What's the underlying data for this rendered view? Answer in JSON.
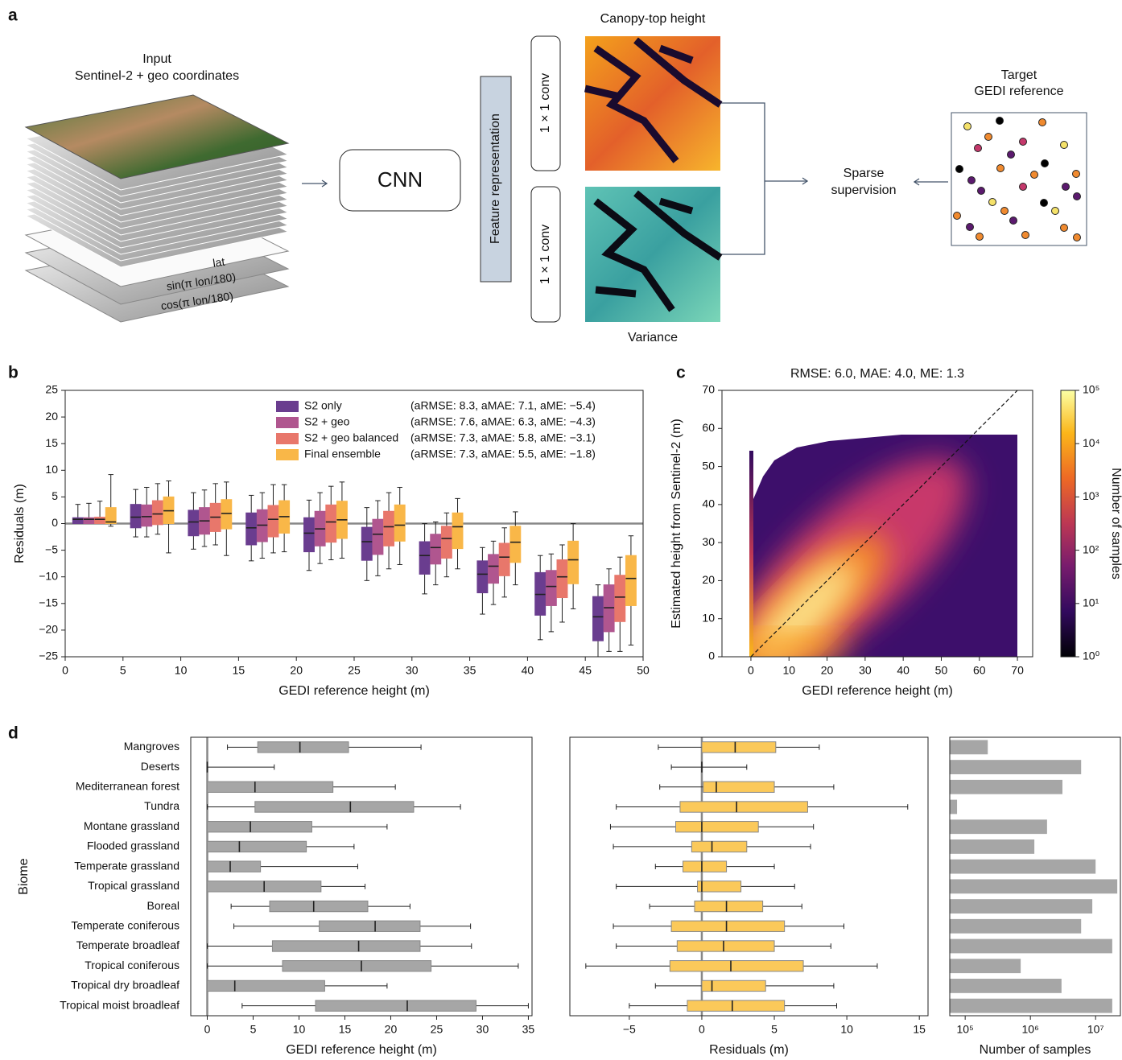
{
  "diagram": {
    "panel_label": "a",
    "input_title": [
      "Input",
      "Sentinel-2 + geo coordinates"
    ],
    "layers": [
      "lat",
      "sin(π lon/180)",
      "cos(π lon/180)"
    ],
    "cnn": "CNN",
    "feature": "Feature representation",
    "conv": [
      "1 × 1 conv",
      "1 × 1 conv"
    ],
    "outputs": [
      "Canopy-top height",
      "Variance"
    ],
    "supervision": [
      "Sparse",
      "supervision"
    ],
    "target": [
      "Target",
      "GEDI reference"
    ]
  },
  "chart_data": [
    {
      "type": "boxplot",
      "orient": "v",
      "panel_label": "b",
      "xlabel": "GEDI reference height (m)",
      "ylabel": "Residuals (m)",
      "xlim": [
        0,
        50
      ],
      "ylim": [
        -25,
        25
      ],
      "xticks": [
        0,
        5,
        10,
        15,
        20,
        25,
        30,
        35,
        40,
        45,
        50
      ],
      "yticks": [
        {
          "value": -25,
          "label": "−25"
        },
        {
          "value": -20,
          "label": "−20"
        },
        {
          "value": -15,
          "label": "−15"
        },
        {
          "value": -10,
          "label": "−10"
        },
        {
          "value": -5,
          "label": "−5"
        },
        0,
        5,
        10,
        15,
        20,
        25
      ],
      "reference_line": 0,
      "series": [
        {
          "name": "S2 only",
          "metrics": "(aRMSE: 8.3, aMAE: 7.1, aME: −5.4)",
          "color": "#6a3d8f",
          "low": [
            0,
            -2.5,
            -4.8,
            -7,
            -8.8,
            -10.7,
            -13.2,
            -17,
            -21.8,
            -25
          ],
          "q1": [
            0,
            -0.8,
            -2.3,
            -4,
            -5.3,
            -6.9,
            -9.5,
            -13,
            -17.2,
            -22
          ],
          "median": [
            0.8,
            1.2,
            0.3,
            -0.8,
            -1.8,
            -3.4,
            -6,
            -9.5,
            -13.3,
            -17.5
          ],
          "q3": [
            1.1,
            3.6,
            2.5,
            2,
            1.1,
            -0.7,
            -3.4,
            -7,
            -9.2,
            -13.7
          ],
          "high": [
            3.6,
            6.4,
            5.8,
            5.3,
            4.4,
            3,
            0,
            -4.5,
            -6,
            -11.5
          ]
        },
        {
          "name": "S2 + geo",
          "metrics": "(aRMSE: 7.6, aMAE: 6.3, aME: −4.3)",
          "color": "#b0568f",
          "low": [
            0,
            -2.5,
            -4.3,
            -6.5,
            -7.5,
            -9.8,
            -11.5,
            -15.2,
            -20.3,
            -24
          ],
          "q1": [
            0,
            -0.5,
            -2,
            -3.4,
            -4.2,
            -5.8,
            -7.6,
            -11.2,
            -15.4,
            -20.3
          ],
          "median": [
            0.8,
            1.3,
            0.5,
            -0.3,
            -1,
            -2,
            -4.5,
            -8,
            -11.8,
            -15.8
          ],
          "q3": [
            1.1,
            3.5,
            3,
            2.6,
            2.3,
            0.8,
            -2,
            -5.8,
            -8.8,
            -11.5
          ],
          "high": [
            3.8,
            6.8,
            6.3,
            5.8,
            5.8,
            4.3,
            0.3,
            -3.3,
            -5.7,
            -8.5
          ]
        },
        {
          "name": "S2 + geo balanced",
          "metrics": "(aRMSE: 7.3, aMAE: 5.8, aME: −3.1)",
          "color": "#e8776b",
          "low": [
            0,
            -2,
            -4,
            -5.5,
            -6.8,
            -8.5,
            -10,
            -13.8,
            -18.5,
            -24
          ],
          "q1": [
            0,
            -0.2,
            -1.5,
            -2.5,
            -3.5,
            -4.2,
            -6.5,
            -9.8,
            -13.9,
            -18.4
          ],
          "median": [
            0.8,
            1.8,
            1.2,
            0.8,
            0.3,
            -0.6,
            -2.8,
            -6.3,
            -10,
            -13.8
          ],
          "q3": [
            1.2,
            4.3,
            3.8,
            3.4,
            3.5,
            2.3,
            -0.5,
            -3.7,
            -6.8,
            -9.7
          ],
          "high": [
            4.2,
            7.5,
            7.5,
            7.3,
            7,
            5.8,
            2,
            -0.8,
            -4,
            -6.3
          ]
        },
        {
          "name": "Final ensemble",
          "metrics": "(aRMSE: 7.3, aMAE: 5.5, aME: −1.8)",
          "color": "#f9b748",
          "low": [
            -0.5,
            -5.5,
            -6,
            -5.3,
            -6.5,
            -7.7,
            -8.5,
            -11.5,
            -16,
            -22.8
          ],
          "q1": [
            0,
            0,
            -1,
            -1.8,
            -2.8,
            -3.3,
            -4.7,
            -7.3,
            -11.3,
            -15.4
          ],
          "median": [
            0.3,
            2.4,
            1.9,
            1.3,
            0.7,
            -0.3,
            -0.6,
            -3.5,
            -6.8,
            -10.3
          ],
          "q3": [
            3,
            5,
            4.5,
            4.3,
            4.2,
            3.5,
            2,
            -0.5,
            -3.3,
            -6
          ],
          "high": [
            9.2,
            8,
            7.8,
            7.3,
            7.8,
            6.8,
            4.7,
            2.2,
            0,
            -2.3
          ]
        }
      ]
    },
    {
      "type": "hist2d",
      "panel_label": "c",
      "title": "RMSE: 6.0, MAE: 4.0, ME: 1.3",
      "xlabel": "GEDI reference height (m)",
      "ylabel": "Estimated height from Sentinel-2 (m)",
      "xlim": [
        -7.6,
        74
      ],
      "ylim": [
        0,
        70
      ],
      "xticks": [
        0,
        10,
        20,
        30,
        40,
        50,
        60,
        70
      ],
      "yticks": [
        0,
        10,
        20,
        30,
        40,
        50,
        60,
        70
      ],
      "identity_line": true,
      "colorbar": {
        "label": "Number of samples",
        "scale": "log",
        "lim": [
          1,
          100000
        ],
        "ticks": [
          {
            "value": 1,
            "label": "10⁰"
          },
          {
            "value": 10,
            "label": "10¹"
          },
          {
            "value": 100,
            "label": "10²"
          },
          {
            "value": 1000,
            "label": "10³"
          },
          {
            "value": 10000,
            "label": "10⁴"
          },
          {
            "value": 100000,
            "label": "10⁵"
          }
        ]
      }
    },
    {
      "type": "boxplot",
      "orient": "h",
      "panel_label": "d",
      "ylabel": "Biome",
      "xlabel": "GEDI reference height (m)",
      "color": "#a6a6a6",
      "categories": [
        "Mangroves",
        "Deserts",
        "Mediterranean forest",
        "Tundra",
        "Montane grassland",
        "Flooded grassland",
        "Temperate grassland",
        "Tropical grassland",
        "Boreal",
        "Temperate coniferous",
        "Temperate broadleaf",
        "Tropical coniferous",
        "Tropical dry broadleaf",
        "Tropical moist broadleaf"
      ],
      "xlim": [
        -1.8,
        35.4
      ],
      "xticks": [
        0,
        5,
        10,
        15,
        20,
        25,
        30,
        35
      ],
      "reference_line": 0,
      "low": [
        2.2,
        0,
        0,
        0,
        0,
        0,
        0,
        0,
        2.6,
        2.9,
        0,
        0,
        0,
        3.8
      ],
      "q1": [
        5.5,
        0,
        0,
        5.2,
        0,
        0,
        0,
        0,
        6.8,
        12.2,
        7.1,
        8.2,
        0,
        11.8
      ],
      "median": [
        10.1,
        0,
        5.2,
        15.6,
        4.7,
        3.5,
        2.5,
        6.2,
        11.6,
        18.3,
        16.5,
        16.8,
        3,
        21.8
      ],
      "q3": [
        15.4,
        0,
        13.7,
        22.5,
        11.4,
        10.8,
        5.8,
        12.4,
        17.5,
        23.2,
        23.2,
        24.4,
        12.8,
        29.3
      ],
      "high": [
        23.3,
        7.3,
        20.5,
        27.6,
        19.6,
        16,
        16.4,
        17.2,
        22.1,
        28.7,
        28.8,
        33.9,
        19.6,
        35
      ]
    },
    {
      "type": "boxplot",
      "orient": "h",
      "xlabel": "Residuals (m)",
      "color": "#fbc95a",
      "xlim": [
        -9.1,
        15.6
      ],
      "xticks": [
        {
          "value": -5,
          "label": "−5"
        },
        0,
        5,
        10,
        15
      ],
      "reference_line": 0,
      "low": [
        -3,
        -2.1,
        -2.9,
        -5.9,
        -6.3,
        -6.1,
        -3.2,
        -5.9,
        -3.6,
        -6.1,
        -5.9,
        -8,
        -3.2,
        -5
      ],
      "q1": [
        0,
        0,
        0.1,
        -1.5,
        -1.8,
        -0.7,
        -1.3,
        -0.3,
        -0.5,
        -2.1,
        -1.7,
        -2.2,
        0,
        -1
      ],
      "median": [
        2.3,
        0,
        1,
        2.4,
        0,
        0.7,
        0,
        0,
        1.7,
        1.7,
        1.5,
        2,
        0.7,
        2.1
      ],
      "q3": [
        5.1,
        0,
        5,
        7.3,
        3.9,
        3.1,
        1.7,
        2.7,
        4.2,
        5.7,
        5,
        7,
        4.4,
        5.7
      ],
      "high": [
        8.1,
        3.1,
        9.1,
        14.2,
        7.7,
        7.5,
        5,
        6.4,
        6.9,
        9.8,
        8.9,
        12.1,
        9.1,
        9.3
      ]
    },
    {
      "type": "bar",
      "orient": "h",
      "log_x": true,
      "xlabel": "Number of samples",
      "color": "#a6a6a6",
      "xlim": [
        58000,
        24000000
      ],
      "xticks": [
        {
          "value": 100000,
          "label": "10⁵"
        },
        {
          "value": 1000000,
          "label": "10⁶"
        },
        {
          "value": 10000000,
          "label": "10⁷"
        }
      ],
      "values": [
        222000,
        6000000,
        3100000,
        75000,
        1800000,
        1150000,
        10000000,
        21500000,
        8900000,
        6000000,
        18000000,
        710000,
        3000000,
        18000000
      ]
    }
  ]
}
